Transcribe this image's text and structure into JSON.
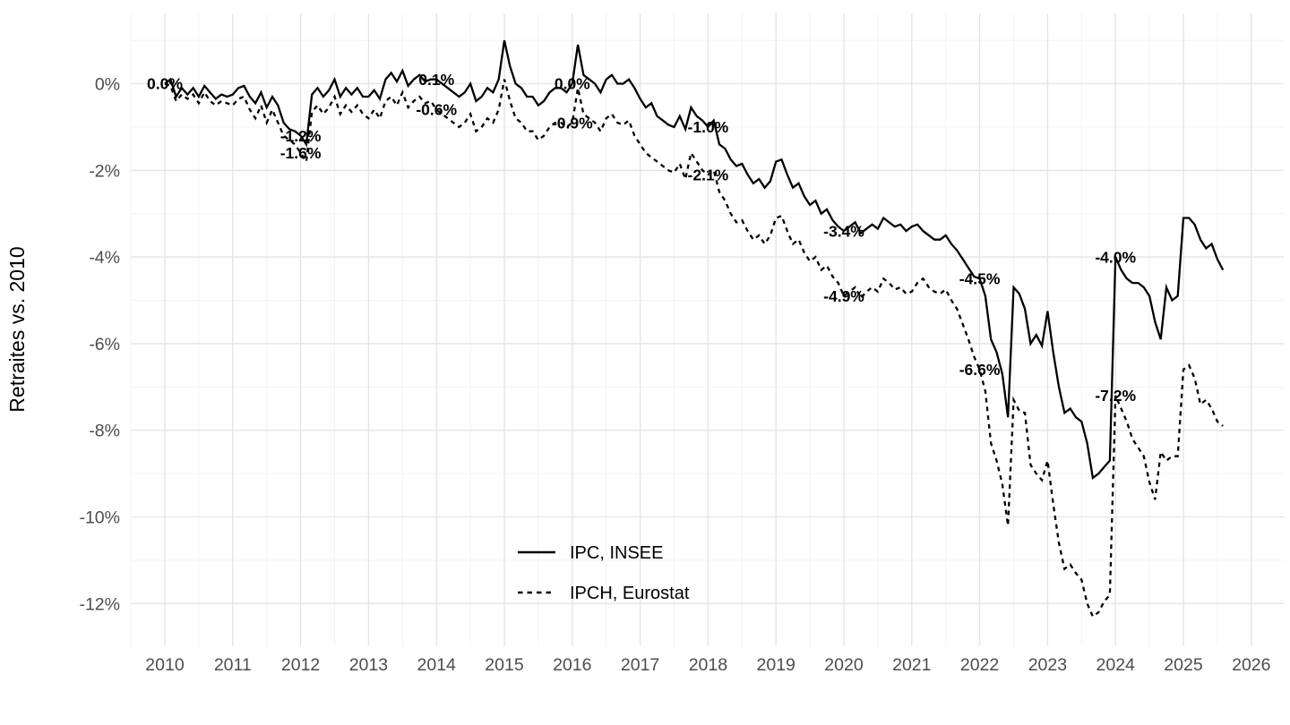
{
  "chart_data": {
    "type": "line",
    "title": "",
    "xlabel": "",
    "ylabel": "Retraites vs. 2010",
    "x_start_year": 2010,
    "months_per_point": 1,
    "xlim": [
      2009.5,
      2026.45
    ],
    "ylim": [
      -13.0,
      1.65
    ],
    "grid": "on",
    "legend_position": "inside-bottom-center",
    "x_ticks": [
      2010,
      2011,
      2012,
      2013,
      2014,
      2015,
      2016,
      2017,
      2018,
      2019,
      2020,
      2021,
      2022,
      2023,
      2024,
      2025,
      2026
    ],
    "x_tick_labels": [
      "2010",
      "2011",
      "2012",
      "2013",
      "2014",
      "2015",
      "2016",
      "2017",
      "2018",
      "2019",
      "2020",
      "2021",
      "2022",
      "2023",
      "2024",
      "2025",
      "2026"
    ],
    "y_ticks": [
      {
        "v": 0,
        "label": "0%"
      },
      {
        "v": -2,
        "label": "-2%"
      },
      {
        "v": -4,
        "label": "-4%"
      },
      {
        "v": -6,
        "label": "-6%"
      },
      {
        "v": -8,
        "label": "-8%"
      },
      {
        "v": -10,
        "label": "-10%"
      },
      {
        "v": -12,
        "label": "-12%"
      }
    ],
    "colors": {
      "line": "#000000",
      "grid_major": "#e4e4e4",
      "grid_minor": "#f2f2f2",
      "tick_label": "#4d4d4d",
      "background": "#ffffff"
    },
    "series": [
      {
        "name": "IPC, INSEE",
        "style": "solid",
        "values": [
          0,
          0.1,
          -0.3,
          -0.1,
          -0.25,
          -0.1,
          -0.3,
          -0.05,
          -0.2,
          -0.35,
          -0.25,
          -0.3,
          -0.25,
          -0.1,
          -0.05,
          -0.3,
          -0.45,
          -0.2,
          -0.55,
          -0.3,
          -0.5,
          -0.9,
          -1.05,
          -1.1,
          -1.2,
          -1.4,
          -0.25,
          -0.1,
          -0.3,
          -0.15,
          0.1,
          -0.3,
          -0.1,
          -0.25,
          -0.1,
          -0.3,
          -0.3,
          -0.15,
          -0.35,
          0.1,
          0.25,
          0.05,
          0.3,
          -0.05,
          0.1,
          0.2,
          0.05,
          0.1,
          0.1,
          0,
          -0.1,
          -0.2,
          -0.3,
          -0.2,
          0,
          -0.4,
          -0.3,
          -0.1,
          -0.2,
          0.1,
          1.0,
          0.4,
          0,
          -0.1,
          -0.3,
          -0.3,
          -0.5,
          -0.4,
          -0.2,
          -0.1,
          -0.1,
          -0.2,
          0,
          0.9,
          0.2,
          0.1,
          0,
          -0.2,
          0.1,
          0.2,
          0,
          0,
          0.1,
          -0.1,
          -0.35,
          -0.55,
          -0.45,
          -0.75,
          -0.85,
          -0.95,
          -1.0,
          -0.75,
          -1.05,
          -0.55,
          -0.75,
          -0.85,
          -1.0,
          -0.85,
          -1.4,
          -1.5,
          -1.75,
          -1.9,
          -1.85,
          -2.1,
          -2.3,
          -2.2,
          -2.4,
          -2.25,
          -1.8,
          -1.75,
          -2.1,
          -2.4,
          -2.3,
          -2.6,
          -2.8,
          -2.7,
          -3.0,
          -2.9,
          -3.15,
          -3.3,
          -3.4,
          -3.3,
          -3.2,
          -3.45,
          -3.35,
          -3.25,
          -3.35,
          -3.1,
          -3.2,
          -3.3,
          -3.25,
          -3.4,
          -3.3,
          -3.25,
          -3.4,
          -3.5,
          -3.6,
          -3.6,
          -3.5,
          -3.7,
          -3.85,
          -4.05,
          -4.25,
          -4.45,
          -4.5,
          -4.9,
          -5.9,
          -6.2,
          -6.7,
          -7.7,
          -4.7,
          -4.85,
          -5.2,
          -6.0,
          -5.8,
          -6.05,
          -5.25,
          -6.2,
          -7.0,
          -7.6,
          -7.5,
          -7.7,
          -7.8,
          -8.3,
          -9.1,
          -9.0,
          -8.85,
          -8.7,
          -4.0,
          -4.3,
          -4.5,
          -4.6,
          -4.6,
          -4.7,
          -4.9,
          -5.5,
          -5.9,
          -4.7,
          -5.0,
          -4.9,
          -3.1,
          -3.1,
          -3.25,
          -3.6,
          -3.8,
          -3.7,
          -4.05,
          -4.3
        ]
      },
      {
        "name": "IPCH, Eurostat",
        "style": "dashed",
        "values": [
          0,
          -0.05,
          -0.4,
          -0.25,
          -0.35,
          -0.25,
          -0.45,
          -0.2,
          -0.4,
          -0.5,
          -0.4,
          -0.45,
          -0.5,
          -0.35,
          -0.3,
          -0.6,
          -0.8,
          -0.5,
          -0.9,
          -0.6,
          -0.9,
          -1.2,
          -1.3,
          -1.4,
          -1.6,
          -1.8,
          -0.65,
          -0.5,
          -0.7,
          -0.55,
          -0.3,
          -0.7,
          -0.5,
          -0.65,
          -0.5,
          -0.7,
          -0.8,
          -0.6,
          -0.8,
          -0.4,
          -0.3,
          -0.5,
          -0.2,
          -0.55,
          -0.4,
          -0.3,
          -0.45,
          -0.4,
          -0.6,
          -0.7,
          -0.8,
          -0.9,
          -1.0,
          -0.9,
          -0.7,
          -1.1,
          -1.0,
          -0.8,
          -0.9,
          -0.6,
          0.1,
          -0.4,
          -0.8,
          -0.9,
          -1.1,
          -1.1,
          -1.3,
          -1.2,
          -1.0,
          -0.9,
          -0.9,
          -1.0,
          -0.9,
          -0.1,
          -0.7,
          -0.8,
          -0.9,
          -1.1,
          -0.8,
          -0.7,
          -0.9,
          -0.95,
          -0.85,
          -1.2,
          -1.4,
          -1.6,
          -1.7,
          -1.8,
          -1.9,
          -2.0,
          -2.05,
          -1.85,
          -2.2,
          -1.6,
          -1.8,
          -2.0,
          -2.1,
          -2.0,
          -2.5,
          -2.7,
          -3.0,
          -3.2,
          -3.15,
          -3.4,
          -3.6,
          -3.5,
          -3.7,
          -3.5,
          -3.1,
          -3.05,
          -3.4,
          -3.7,
          -3.6,
          -3.9,
          -4.1,
          -4.0,
          -4.3,
          -4.2,
          -4.45,
          -4.6,
          -4.9,
          -4.8,
          -4.7,
          -4.95,
          -4.8,
          -4.7,
          -4.8,
          -4.5,
          -4.6,
          -4.75,
          -4.7,
          -4.85,
          -4.8,
          -4.6,
          -4.5,
          -4.7,
          -4.8,
          -4.85,
          -4.75,
          -5.0,
          -5.2,
          -5.55,
          -5.9,
          -6.3,
          -6.6,
          -7.1,
          -8.3,
          -8.7,
          -9.25,
          -10.2,
          -7.3,
          -7.55,
          -7.6,
          -8.8,
          -9.0,
          -9.15,
          -8.7,
          -9.7,
          -10.6,
          -11.2,
          -11.1,
          -11.3,
          -11.45,
          -12.0,
          -12.3,
          -12.2,
          -11.95,
          -11.8,
          -7.2,
          -7.5,
          -7.8,
          -8.2,
          -8.4,
          -8.6,
          -9.2,
          -9.6,
          -8.5,
          -8.7,
          -8.6,
          -8.6,
          -6.6,
          -6.5,
          -6.8,
          -7.4,
          -7.3,
          -7.5,
          -7.8,
          -7.9
        ]
      }
    ],
    "annotations": [
      {
        "x": 2010.0,
        "y": 0.0,
        "label": "0.0%"
      },
      {
        "x": 2012.0,
        "y": -1.2,
        "label": "-1.2%"
      },
      {
        "x": 2012.0,
        "y": -1.6,
        "label": "-1.6%"
      },
      {
        "x": 2014.0,
        "y": 0.1,
        "label": "0.1%"
      },
      {
        "x": 2014.0,
        "y": -0.6,
        "label": "-0.6%"
      },
      {
        "x": 2016.0,
        "y": 0.0,
        "label": "0.0%"
      },
      {
        "x": 2016.0,
        "y": -0.9,
        "label": "-0.9%"
      },
      {
        "x": 2018.0,
        "y": -1.0,
        "label": "-1.0%"
      },
      {
        "x": 2018.0,
        "y": -2.1,
        "label": "-2.1%"
      },
      {
        "x": 2020.0,
        "y": -3.4,
        "label": "-3.4%"
      },
      {
        "x": 2020.0,
        "y": -4.9,
        "label": "-4.9%"
      },
      {
        "x": 2022.0,
        "y": -4.5,
        "label": "-4.5%"
      },
      {
        "x": 2022.0,
        "y": -6.6,
        "label": "-6.6%"
      },
      {
        "x": 2024.0,
        "y": -4.0,
        "label": "-4.0%"
      },
      {
        "x": 2024.0,
        "y": -7.2,
        "label": "-7.2%"
      }
    ]
  }
}
